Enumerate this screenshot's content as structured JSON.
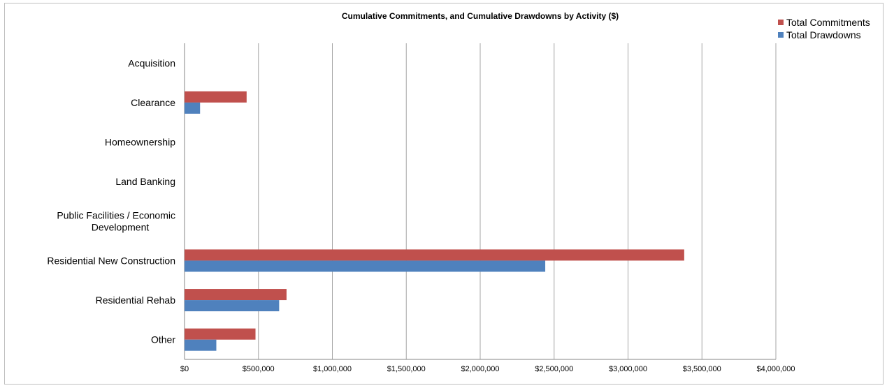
{
  "chart_data": {
    "type": "bar",
    "orientation": "horizontal",
    "title": "Cumulative Commitments, and Cumulative Drawdowns by Activity ($)",
    "categories": [
      "Acquisition",
      "Clearance",
      "Homeownership",
      "Land Banking",
      "Public Facilities / Economic Development",
      "Residential New Construction",
      "Residential Rehab",
      "Other"
    ],
    "category_lines": [
      [
        "Acquisition"
      ],
      [
        "Clearance"
      ],
      [
        "Homeownership"
      ],
      [
        "Land Banking"
      ],
      [
        "Public Facilities / Economic",
        "Development"
      ],
      [
        "Residential New Construction"
      ],
      [
        "Residential Rehab"
      ],
      [
        "Other"
      ]
    ],
    "series": [
      {
        "name": "Total Commitments",
        "color": "#c0504d",
        "values": [
          0,
          420000,
          0,
          0,
          0,
          3380000,
          690000,
          480000
        ]
      },
      {
        "name": "Total Drawdowns",
        "color": "#4f81bd",
        "values": [
          0,
          105000,
          0,
          0,
          0,
          2440000,
          640000,
          215000
        ]
      }
    ],
    "xlim": [
      0,
      4000000
    ],
    "x_ticks": [
      0,
      500000,
      1000000,
      1500000,
      2000000,
      2500000,
      3000000,
      3500000,
      4000000
    ],
    "x_tick_labels": [
      "$0",
      "$500,000",
      "$1,000,000",
      "$1,500,000",
      "$2,000,000",
      "$2,500,000",
      "$3,000,000",
      "$3,500,000",
      "$4,000,000"
    ],
    "grid": "vertical",
    "legend_position": "top-right",
    "xlabel": "",
    "ylabel": ""
  }
}
